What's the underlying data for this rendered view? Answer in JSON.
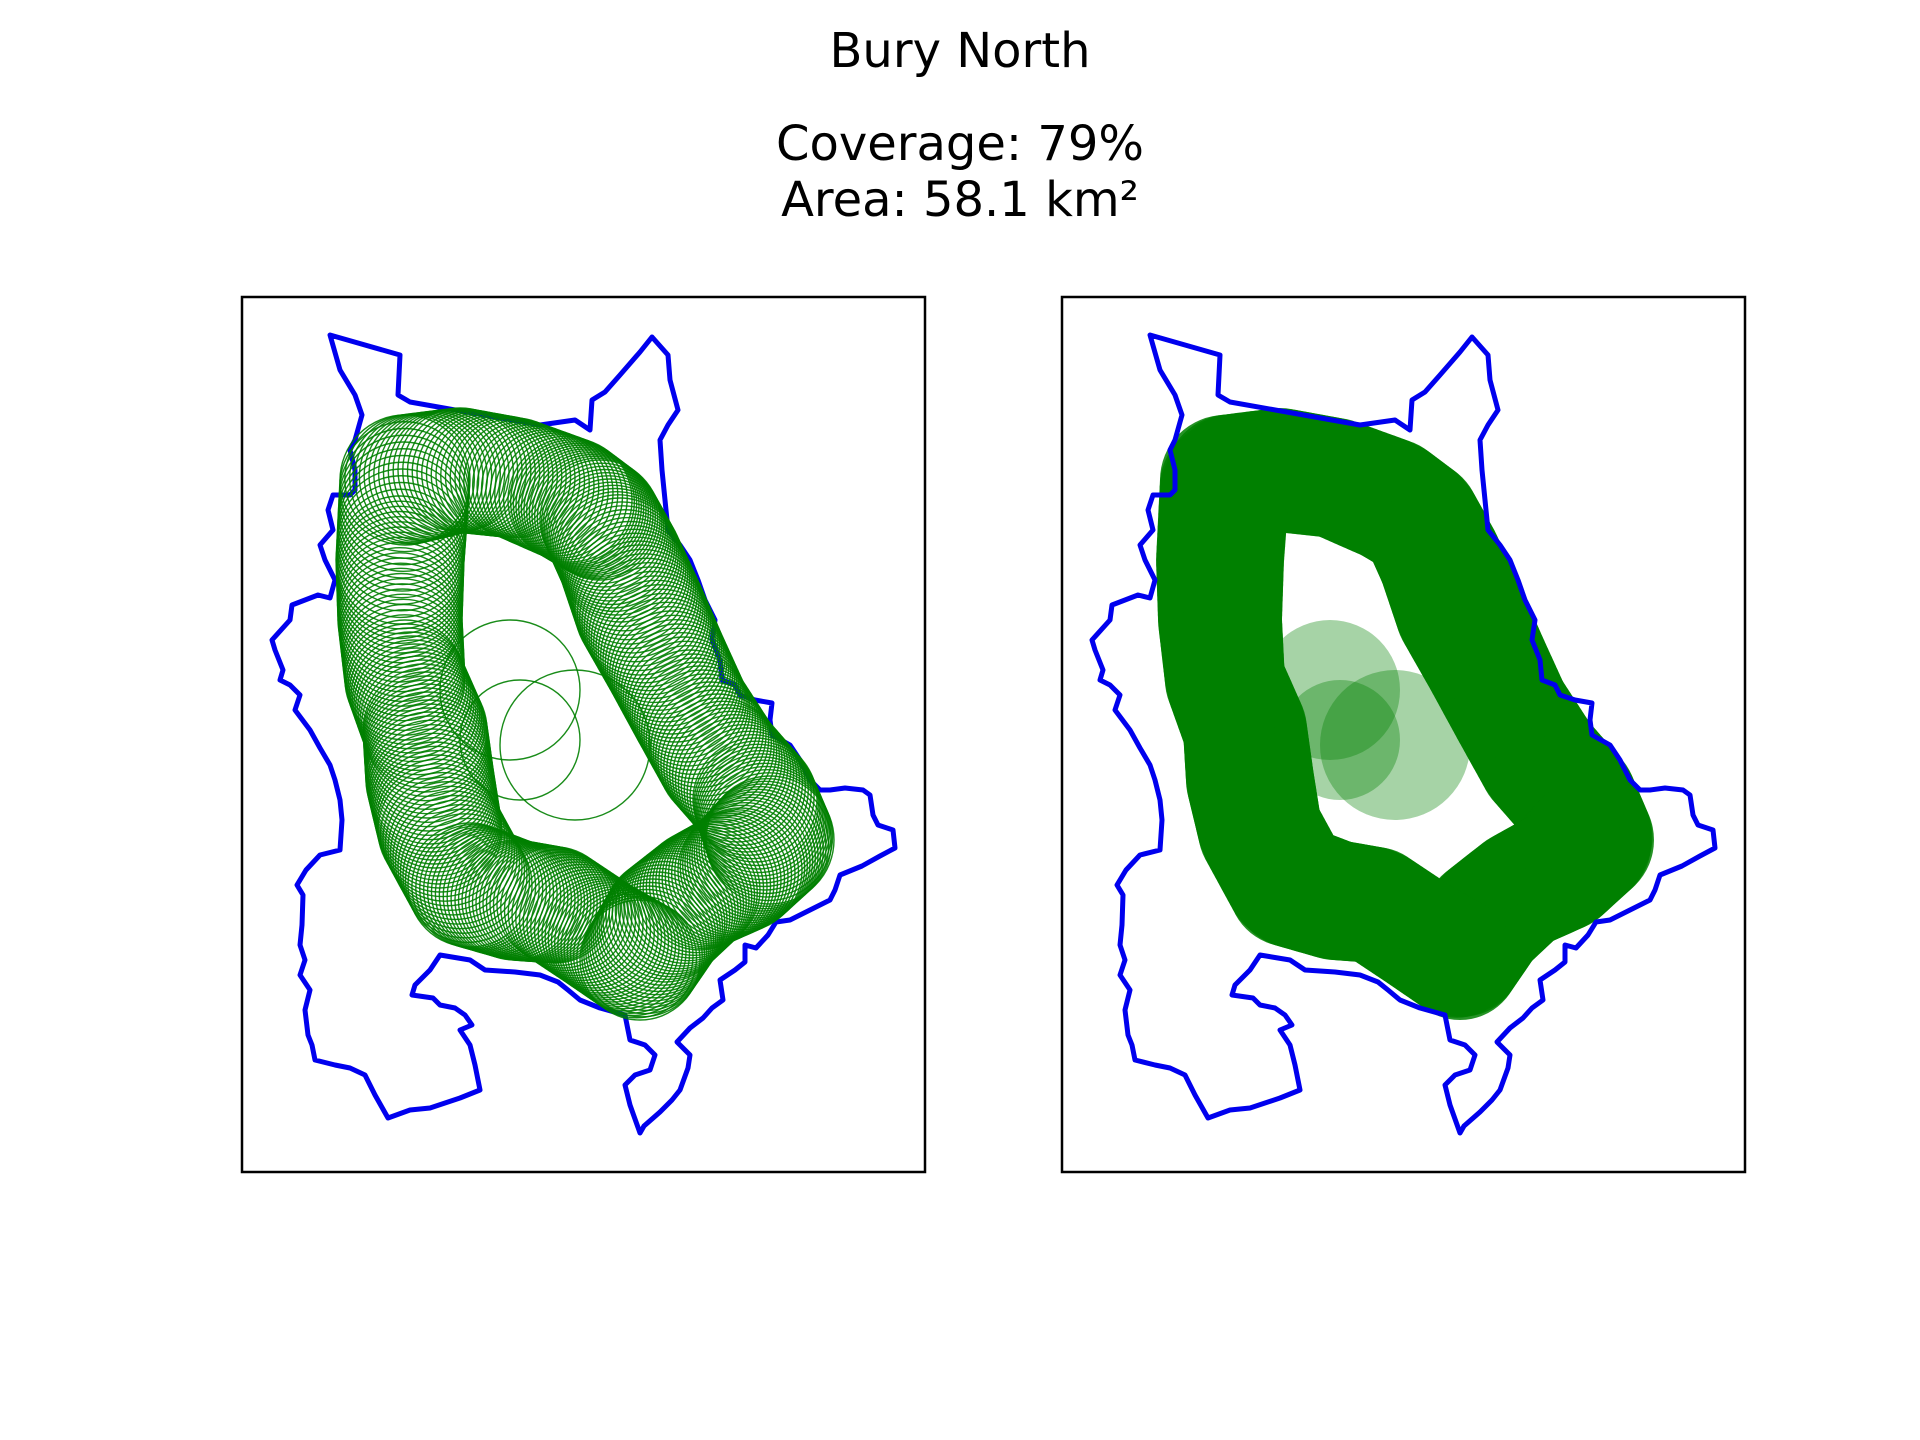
{
  "title": "Bury North",
  "coverage_line": "Coverage: 79%",
  "area_line": "Area: 58.1 km²",
  "colors": {
    "boundary": "#0000ee",
    "coverage": "#008000",
    "frame": "#000000"
  },
  "panels": [
    {
      "mode": "outline"
    },
    {
      "mode": "filled"
    }
  ]
}
